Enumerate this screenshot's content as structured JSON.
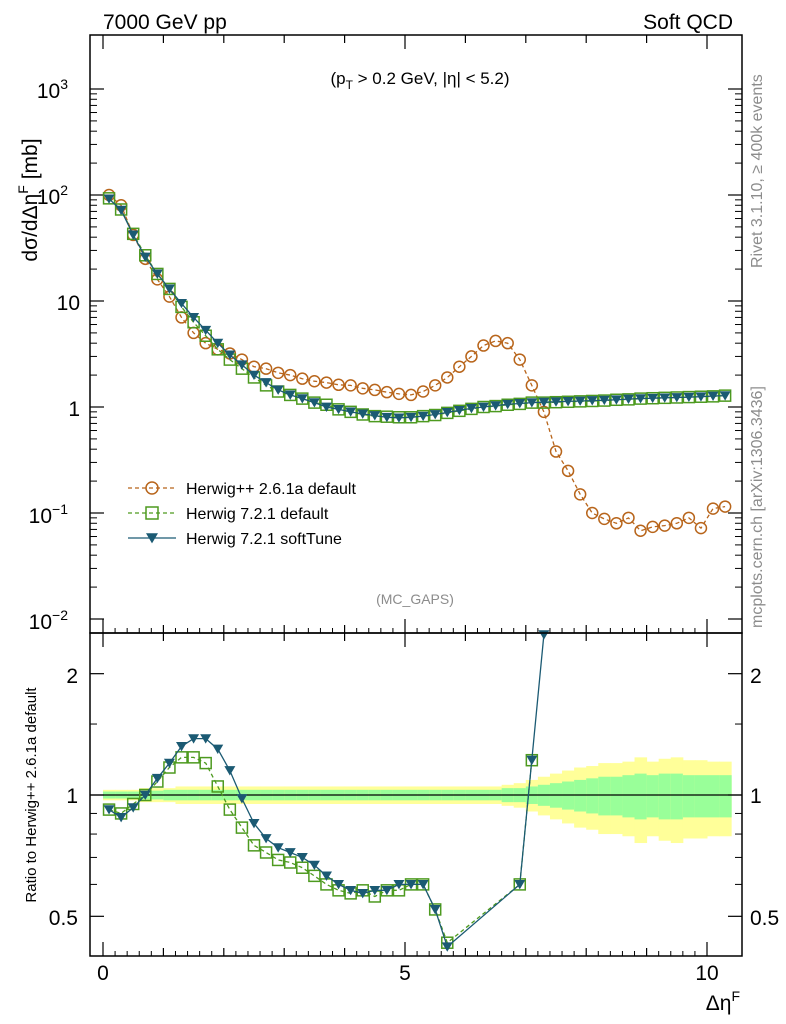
{
  "header": {
    "energy_label": "7000 GeV pp",
    "process_label": "Soft QCD",
    "cuts_prefix": "(p",
    "cuts_sub": "T",
    "cuts_rest": " > 0.2 GeV, |η| < 5.2)",
    "analysis_tag": "(MC_GAPS)",
    "side_rivet": "Rivet 3.1.10, ≥ 400k events",
    "side_site": "mcplots.cern.ch [arXiv:1306.3436]"
  },
  "axes": {
    "main_ylabel": "dσ/dΔη",
    "main_ylabel_sup": "F",
    "main_ylabel_unit": " [mb]",
    "ratio_ylabel": "Ratio to Herwig++ 2.6.1a default",
    "xlabel": "Δη",
    "xlabel_sup": "F",
    "x_ticks": [
      "0",
      "5",
      "10"
    ],
    "ratio_ticks": [
      "0.5",
      "1",
      "2"
    ],
    "main_ticks": {
      "base10": "10",
      "e_minus2": "−2",
      "e_minus1": "−1",
      "one": "1",
      "ten": "10",
      "e2": "2",
      "e3": "3"
    }
  },
  "chart_data": [
    {
      "type": "line",
      "panel": "main",
      "xlim": [
        -0.2,
        10.5
      ],
      "ylim": [
        0.008,
        3000
      ],
      "yscale": "log",
      "legend_placement": "lower-left",
      "series": [
        {
          "name": "Herwig++ 2.6.1a default",
          "color": "#b8651b",
          "marker": "open-circle",
          "line": "dashed",
          "x": [
            0.1,
            0.3,
            0.5,
            0.7,
            0.9,
            1.1,
            1.3,
            1.5,
            1.7,
            1.9,
            2.1,
            2.3,
            2.5,
            2.7,
            2.9,
            3.1,
            3.3,
            3.5,
            3.7,
            3.9,
            4.1,
            4.3,
            4.5,
            4.7,
            4.9,
            5.1,
            5.3,
            5.5,
            5.7,
            5.9,
            6.1,
            6.3,
            6.5,
            6.7,
            6.9,
            7.1,
            7.3,
            7.5,
            7.7,
            7.9,
            8.1,
            8.3,
            8.5,
            8.7,
            8.9,
            9.1,
            9.3,
            9.5,
            9.7,
            9.9,
            10.1,
            10.3
          ],
          "y": [
            100,
            80,
            42,
            25,
            16,
            11,
            7,
            5,
            4,
            3.5,
            3.2,
            2.8,
            2.4,
            2.3,
            2.1,
            2.0,
            1.85,
            1.75,
            1.7,
            1.62,
            1.6,
            1.5,
            1.45,
            1.38,
            1.33,
            1.3,
            1.4,
            1.6,
            1.9,
            2.4,
            3.0,
            3.8,
            4.2,
            4.0,
            2.8,
            1.6,
            0.9,
            0.38,
            0.25,
            0.15,
            0.1,
            0.088,
            0.08,
            0.09,
            0.068,
            0.074,
            0.076,
            0.08,
            0.09,
            0.072,
            0.11,
            0.115
          ]
        },
        {
          "name": "Herwig 7.2.1 default",
          "color": "#4d9a1f",
          "marker": "open-square",
          "line": "dashed",
          "x": [
            0.1,
            0.3,
            0.5,
            0.7,
            0.9,
            1.1,
            1.3,
            1.5,
            1.7,
            1.9,
            2.1,
            2.3,
            2.5,
            2.7,
            2.9,
            3.1,
            3.3,
            3.5,
            3.7,
            3.9,
            4.1,
            4.3,
            4.5,
            4.7,
            4.9,
            5.1,
            5.3,
            5.5,
            5.7,
            5.9,
            6.1,
            6.3,
            6.5,
            6.7,
            6.9,
            7.1,
            7.3,
            7.5,
            7.7,
            7.9,
            8.1,
            8.3,
            8.5,
            8.7,
            8.9,
            9.1,
            9.3,
            9.5,
            9.7,
            9.9,
            10.1,
            10.3
          ],
          "y": [
            93,
            73,
            43,
            27,
            18,
            13,
            8.8,
            6.3,
            4.7,
            3.5,
            2.8,
            2.3,
            1.9,
            1.6,
            1.4,
            1.3,
            1.2,
            1.1,
            1.05,
            0.95,
            0.9,
            0.85,
            0.82,
            0.81,
            0.8,
            0.8,
            0.82,
            0.84,
            0.88,
            0.92,
            0.96,
            1.0,
            1.02,
            1.05,
            1.07,
            1.1,
            1.1,
            1.11,
            1.12,
            1.13,
            1.14,
            1.15,
            1.17,
            1.18,
            1.2,
            1.21,
            1.22,
            1.23,
            1.24,
            1.25,
            1.26,
            1.28
          ]
        },
        {
          "name": "Herwig 7.2.1 softTune",
          "color": "#1b5a73",
          "marker": "filled-triangle-down",
          "line": "solid",
          "x": [
            0.1,
            0.3,
            0.5,
            0.7,
            0.9,
            1.1,
            1.3,
            1.5,
            1.7,
            1.9,
            2.1,
            2.3,
            2.5,
            2.7,
            2.9,
            3.1,
            3.3,
            3.5,
            3.7,
            3.9,
            4.1,
            4.3,
            4.5,
            4.7,
            4.9,
            5.1,
            5.3,
            5.5,
            5.7,
            5.9,
            6.1,
            6.3,
            6.5,
            6.7,
            6.9,
            7.1,
            7.3,
            7.5,
            7.7,
            7.9,
            8.1,
            8.3,
            8.5,
            8.7,
            8.9,
            9.1,
            9.3,
            9.5,
            9.7,
            9.9,
            10.1,
            10.3
          ],
          "y": [
            92,
            72,
            42,
            26,
            18,
            13,
            9.5,
            7,
            5.3,
            4.0,
            3.1,
            2.5,
            2.0,
            1.7,
            1.45,
            1.3,
            1.2,
            1.1,
            1.0,
            0.95,
            0.9,
            0.86,
            0.83,
            0.8,
            0.79,
            0.8,
            0.82,
            0.85,
            0.89,
            0.93,
            0.97,
            1.0,
            1.03,
            1.06,
            1.08,
            1.1,
            1.11,
            1.12,
            1.13,
            1.14,
            1.15,
            1.16,
            1.17,
            1.19,
            1.2,
            1.21,
            1.22,
            1.23,
            1.24,
            1.25,
            1.27,
            1.28
          ]
        }
      ]
    },
    {
      "type": "line",
      "panel": "ratio",
      "ylim": [
        0.4,
        2.35
      ],
      "yscale": "log",
      "reference_line": 1,
      "uncertainty_bands": {
        "x_edges": [
          0,
          0.2,
          0.4,
          0.6,
          0.8,
          1.0,
          1.2,
          1.4,
          1.6,
          1.8,
          2.0,
          2.2,
          2.4,
          2.6,
          2.8,
          3.0,
          3.2,
          3.4,
          3.6,
          3.8,
          4.0,
          4.2,
          4.4,
          4.6,
          4.8,
          5.0,
          5.2,
          5.4,
          5.6,
          5.8,
          6.0,
          6.2,
          6.4,
          6.6,
          6.8,
          7.0,
          7.2,
          7.4,
          7.6,
          7.8,
          8.0,
          8.2,
          8.4,
          8.6,
          8.8,
          9.0,
          9.2,
          9.4,
          9.6,
          9.8,
          10.0,
          10.2,
          10.4
        ],
        "inner_halfwidth": [
          0.02,
          0.02,
          0.02,
          0.025,
          0.025,
          0.03,
          0.03,
          0.03,
          0.03,
          0.03,
          0.03,
          0.03,
          0.03,
          0.03,
          0.03,
          0.03,
          0.03,
          0.03,
          0.03,
          0.03,
          0.03,
          0.03,
          0.03,
          0.03,
          0.03,
          0.03,
          0.03,
          0.03,
          0.03,
          0.03,
          0.03,
          0.03,
          0.03,
          0.04,
          0.04,
          0.05,
          0.06,
          0.07,
          0.08,
          0.09,
          0.1,
          0.11,
          0.11,
          0.12,
          0.13,
          0.12,
          0.13,
          0.13,
          0.12,
          0.12,
          0.12,
          0.12
        ],
        "outer_halfwidth": [
          0.03,
          0.03,
          0.03,
          0.04,
          0.04,
          0.04,
          0.05,
          0.05,
          0.05,
          0.05,
          0.05,
          0.05,
          0.05,
          0.05,
          0.05,
          0.05,
          0.05,
          0.05,
          0.05,
          0.05,
          0.05,
          0.05,
          0.05,
          0.05,
          0.05,
          0.05,
          0.05,
          0.05,
          0.05,
          0.05,
          0.05,
          0.05,
          0.05,
          0.06,
          0.07,
          0.09,
          0.11,
          0.13,
          0.15,
          0.17,
          0.18,
          0.2,
          0.2,
          0.21,
          0.24,
          0.21,
          0.23,
          0.24,
          0.22,
          0.22,
          0.21,
          0.21
        ]
      },
      "series": [
        {
          "name": "Herwig 7.2.1 default",
          "color": "#4d9a1f",
          "marker": "open-square",
          "x": [
            0.1,
            0.3,
            0.5,
            0.7,
            0.9,
            1.1,
            1.3,
            1.5,
            1.7,
            1.9,
            2.1,
            2.3,
            2.5,
            2.7,
            2.9,
            3.1,
            3.3,
            3.5,
            3.7,
            3.9,
            4.1,
            4.3,
            4.5,
            4.7,
            4.9,
            5.1,
            5.3,
            5.5,
            5.7,
            6.9,
            7.1
          ],
          "y": [
            0.92,
            0.9,
            0.95,
            1.0,
            1.08,
            1.17,
            1.24,
            1.24,
            1.2,
            1.05,
            0.92,
            0.83,
            0.75,
            0.72,
            0.69,
            0.68,
            0.66,
            0.63,
            0.6,
            0.58,
            0.57,
            0.58,
            0.56,
            0.58,
            0.58,
            0.6,
            0.6,
            0.52,
            0.43,
            0.6,
            1.22
          ]
        },
        {
          "name": "Herwig 7.2.1 softTune",
          "color": "#1b5a73",
          "marker": "filled-triangle-down",
          "x": [
            0.1,
            0.3,
            0.5,
            0.7,
            0.9,
            1.1,
            1.3,
            1.5,
            1.7,
            1.9,
            2.1,
            2.3,
            2.5,
            2.7,
            2.9,
            3.1,
            3.3,
            3.5,
            3.7,
            3.9,
            4.1,
            4.3,
            4.5,
            4.7,
            4.9,
            5.1,
            5.3,
            5.5,
            5.7,
            6.9,
            7.1,
            7.3
          ],
          "y": [
            0.92,
            0.88,
            0.93,
            1.0,
            1.1,
            1.2,
            1.32,
            1.38,
            1.38,
            1.3,
            1.15,
            0.98,
            0.85,
            0.78,
            0.74,
            0.72,
            0.7,
            0.67,
            0.63,
            0.6,
            0.58,
            0.57,
            0.58,
            0.58,
            0.6,
            0.6,
            0.6,
            0.52,
            0.42,
            0.6,
            1.22,
            2.5
          ]
        }
      ]
    }
  ]
}
